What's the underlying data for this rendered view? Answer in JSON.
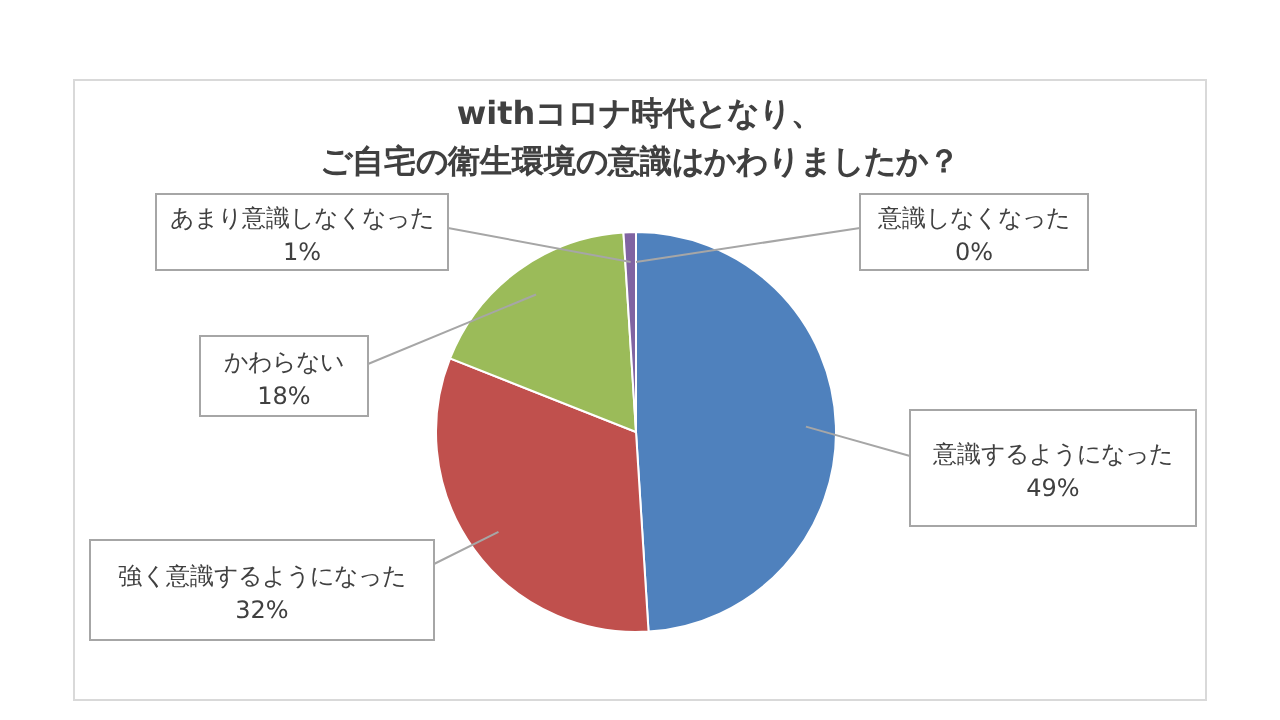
{
  "chart_data": {
    "type": "pie",
    "title": "withコロナ時代となり、ご自宅の衛生環境の意識はかわりましたか？",
    "categories": [
      "意識するようになった",
      "強く意識するようになった",
      "かわらない",
      "あまり意識しなくなった",
      "意識しなくなった"
    ],
    "values": [
      49,
      32,
      18,
      1,
      0
    ],
    "colors": [
      "#4f81bd",
      "#c0504d",
      "#9bbb59",
      "#8064a2",
      "#4bacc6"
    ],
    "value_labels": [
      "49%",
      "32%",
      "18%",
      "1%",
      "0%"
    ]
  }
}
